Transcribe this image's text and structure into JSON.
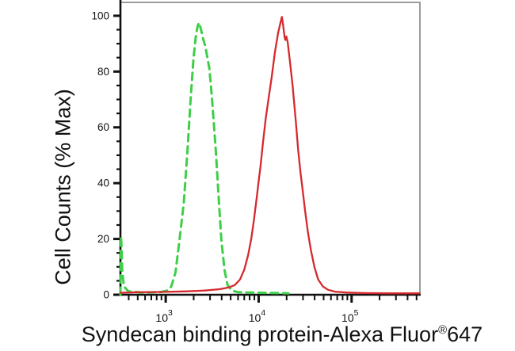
{
  "colors": {
    "green_series": "#3ecf49",
    "red_series": "#d5292d",
    "axis": "#111111",
    "border_gray": "#9b9b9b",
    "text": "#111111"
  },
  "y_axis": {
    "title": "Cell Counts (% Max)",
    "ticks": [
      {
        "v": 0,
        "label": "0"
      },
      {
        "v": 20,
        "label": "20"
      },
      {
        "v": 40,
        "label": "40"
      },
      {
        "v": 60,
        "label": "60"
      },
      {
        "v": 80,
        "label": "80"
      },
      {
        "v": 100,
        "label": "100"
      }
    ],
    "minor_step": 5,
    "range": [
      0,
      104.8
    ]
  },
  "x_axis": {
    "title_main": "Syndecan binding protein-Alexa Fluor",
    "title_sup": "®",
    "title_tail": "647",
    "scale": "log10",
    "log_range": [
      2.513,
      5.735
    ],
    "decades": [
      {
        "exp": 3,
        "base_label": "10",
        "exp_label": "3"
      },
      {
        "exp": 4,
        "base_label": "10",
        "exp_label": "4"
      },
      {
        "exp": 5,
        "base_label": "10",
        "exp_label": "5"
      }
    ],
    "minor_multiples": [
      2,
      3,
      4,
      5,
      6,
      7,
      8,
      9
    ]
  },
  "chart_data": {
    "type": "line",
    "title": "",
    "xlabel": "Syndecan binding protein-Alexa Fluor® 647",
    "ylabel": "Cell Counts (% Max)",
    "x_units": "log10(fluorescence intensity)",
    "y_units": "% of max",
    "xlim_log10": [
      2.513,
      5.735
    ],
    "ylim": [
      0,
      104.8
    ],
    "grid": false,
    "legend": "none",
    "series": [
      {
        "name": "green-dashed-histogram",
        "style": "dashed",
        "color": "#3ecf49",
        "stroke_width": 3,
        "dash": [
          9,
          6.5
        ],
        "peak": {
          "x_log10": 3.36,
          "x_value": 2290,
          "y_percent": 97.5
        },
        "points": [
          [
            2.513,
            0
          ],
          [
            2.516,
            12
          ],
          [
            2.518,
            21
          ],
          [
            2.524,
            18
          ],
          [
            2.532,
            9
          ],
          [
            2.55,
            3
          ],
          [
            2.6,
            1.2
          ],
          [
            2.75,
            0.8
          ],
          [
            2.95,
            1.0
          ],
          [
            3.02,
            1.5
          ],
          [
            3.06,
            3
          ],
          [
            3.105,
            8
          ],
          [
            3.15,
            20
          ],
          [
            3.195,
            33
          ],
          [
            3.235,
            52
          ],
          [
            3.27,
            71
          ],
          [
            3.3,
            85
          ],
          [
            3.325,
            93
          ],
          [
            3.345,
            96.5
          ],
          [
            3.36,
            97.5
          ],
          [
            3.38,
            95
          ],
          [
            3.405,
            91.5
          ],
          [
            3.427,
            89
          ],
          [
            3.47,
            81
          ],
          [
            3.497,
            71
          ],
          [
            3.538,
            52
          ],
          [
            3.573,
            33
          ],
          [
            3.598,
            20
          ],
          [
            3.632,
            9
          ],
          [
            3.665,
            3.5
          ],
          [
            3.71,
            1.5
          ],
          [
            3.78,
            0.9
          ],
          [
            3.9,
            0.8
          ],
          [
            4.05,
            0.7
          ],
          [
            4.2,
            0.6
          ],
          [
            4.32,
            0.5
          ]
        ]
      },
      {
        "name": "red-solid-histogram",
        "style": "solid",
        "color": "#d5292d",
        "stroke_width": 2.3,
        "dash": null,
        "peak": {
          "x_log10": 4.25,
          "x_value": 17800,
          "y_percent": 99.6
        },
        "points": [
          [
            2.513,
            0.7
          ],
          [
            2.7,
            0.9
          ],
          [
            2.95,
            1.0
          ],
          [
            3.2,
            1.2
          ],
          [
            3.42,
            1.5
          ],
          [
            3.58,
            2.0
          ],
          [
            3.68,
            2.6
          ],
          [
            3.745,
            3.5
          ],
          [
            3.8,
            5.5
          ],
          [
            3.845,
            9
          ],
          [
            3.885,
            14
          ],
          [
            3.92,
            20
          ],
          [
            3.95,
            27
          ],
          [
            3.98,
            35
          ],
          [
            4.005,
            42
          ],
          [
            4.02,
            46
          ],
          [
            4.045,
            54
          ],
          [
            4.075,
            63
          ],
          [
            4.105,
            70
          ],
          [
            4.14,
            78
          ],
          [
            4.175,
            87
          ],
          [
            4.21,
            94
          ],
          [
            4.235,
            97.5
          ],
          [
            4.25,
            99.6
          ],
          [
            4.262,
            97
          ],
          [
            4.278,
            92.5
          ],
          [
            4.287,
            91.3
          ],
          [
            4.298,
            92.6
          ],
          [
            4.312,
            90.5
          ],
          [
            4.335,
            84
          ],
          [
            4.365,
            75
          ],
          [
            4.4,
            62
          ],
          [
            4.425,
            52
          ],
          [
            4.45,
            44
          ],
          [
            4.475,
            37
          ],
          [
            4.5,
            30
          ],
          [
            4.53,
            22.5
          ],
          [
            4.562,
            16
          ],
          [
            4.6,
            10
          ],
          [
            4.64,
            5.5
          ],
          [
            4.69,
            3
          ],
          [
            4.745,
            1.8
          ],
          [
            4.82,
            1.1
          ],
          [
            4.95,
            0.8
          ],
          [
            5.15,
            0.6
          ],
          [
            5.4,
            0.5
          ],
          [
            5.73,
            0.5
          ]
        ]
      }
    ]
  }
}
